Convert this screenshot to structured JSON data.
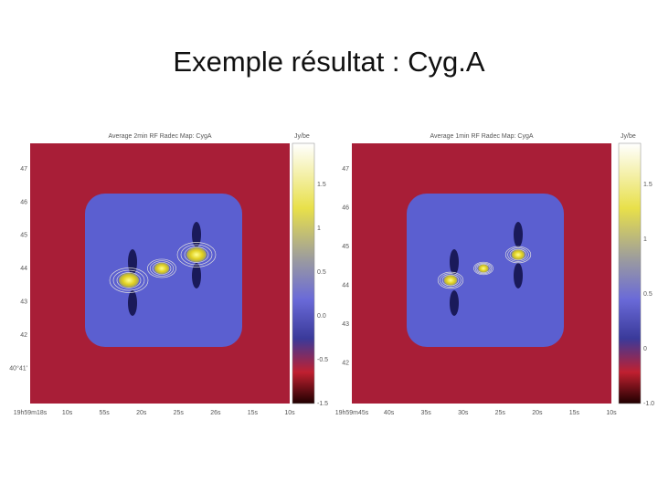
{
  "title": "Exemple résultat : Cyg.A",
  "panels": [
    {
      "title": "Average 2min RF Radec Map: CygA",
      "colorbar_label": "Jy/be",
      "colorbar_ticks": [
        "1.5",
        "1",
        "0.5",
        "0.0",
        "-0.5",
        "-1.5"
      ],
      "y_ticks": [
        "47",
        "46",
        "45",
        "44",
        "43",
        "42",
        "40°41'"
      ],
      "x_ticks": [
        "19h59m18s",
        "10s",
        "55s",
        "20s",
        "25s",
        "26s",
        "15s",
        "10s"
      ]
    },
    {
      "title": "Average 1min RF Radec Map: CygA",
      "colorbar_label": "Jy/be",
      "colorbar_ticks": [
        "1.5",
        "1",
        "0.5",
        "0",
        "-1.0"
      ],
      "y_ticks": [
        "47",
        "46",
        "45",
        "44",
        "43",
        "42"
      ],
      "x_ticks": [
        "19h59m45s",
        "40s",
        "35s",
        "30s",
        "25s",
        "20s",
        "15s",
        "10s"
      ]
    }
  ]
}
